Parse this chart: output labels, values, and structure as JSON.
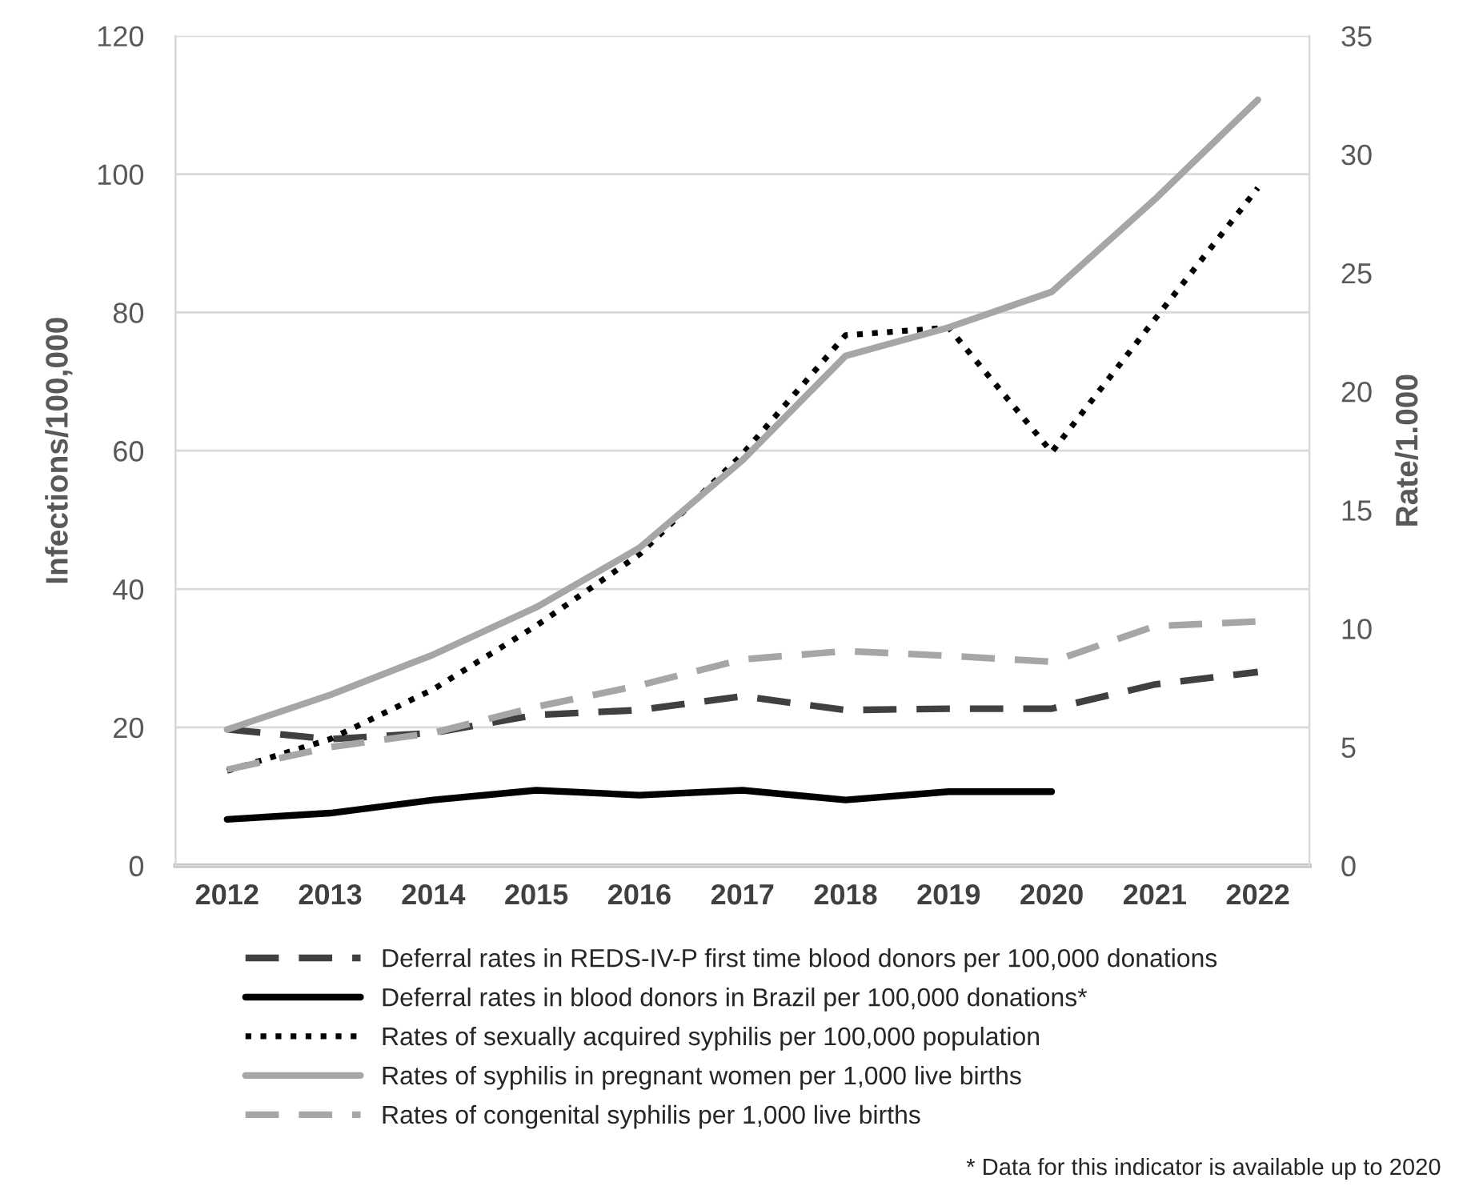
{
  "chart_data": {
    "type": "line",
    "categories": [
      "2012",
      "2013",
      "2014",
      "2015",
      "2016",
      "2017",
      "2018",
      "2019",
      "2020",
      "2021",
      "2022"
    ],
    "ylabel": "Infections/100,000",
    "y2label": "Rate/1.000",
    "ylim": [
      0,
      120
    ],
    "yticks": [
      0,
      20,
      40,
      60,
      80,
      100,
      120
    ],
    "y2lim": [
      0,
      35
    ],
    "y2ticks": [
      0,
      5,
      10,
      15,
      20,
      25,
      30,
      35
    ],
    "grid": "y",
    "legend": "bottom",
    "series": [
      {
        "name": "Deferral rates in REDS-IV-P first time blood donors per 100,000 donations",
        "color": "#404040",
        "line_style": "dashed",
        "values": [
          19.7,
          18.3,
          19.2,
          21.8,
          22.5,
          24.5,
          22.5,
          22.7,
          22.7,
          26.2,
          28
        ]
      },
      {
        "name": "Deferral rates in blood donors in Brazil per 100,000 donations*",
        "color": "#000000",
        "line_style": "solid",
        "values": [
          6.7,
          7.6,
          9.5,
          10.9,
          10.2,
          10.9,
          9.5,
          10.7,
          10.7,
          null,
          null
        ]
      },
      {
        "name": "Rates of sexually acquired syphilis per 100,000 population",
        "color": "#000000",
        "line_style": "dotted",
        "values": [
          13.7,
          18.3,
          25.5,
          34.7,
          45,
          59.5,
          76.7,
          77.8,
          59.8,
          79,
          98
        ]
      },
      {
        "name": "Rates of syphilis in pregnant women per 1,000 live births",
        "color": "#a6a6a6",
        "line_style": "solid",
        "axis": "y2",
        "values": [
          5.74,
          7.2,
          8.9,
          10.9,
          13.4,
          17.1,
          21.5,
          22.7,
          24.2,
          28.1,
          32.3
        ]
      },
      {
        "name": "Rates of congenital syphilis per 1,000 live births",
        "color": "#a6a6a6",
        "line_style": "dashed",
        "axis": "y2",
        "values": [
          4.05,
          5.0,
          5.6,
          6.7,
          7.6,
          8.7,
          9.05,
          8.85,
          8.6,
          10.1,
          10.3
        ]
      }
    ],
    "annotations": [
      "* Data for this indicator is available up to 2020"
    ]
  }
}
